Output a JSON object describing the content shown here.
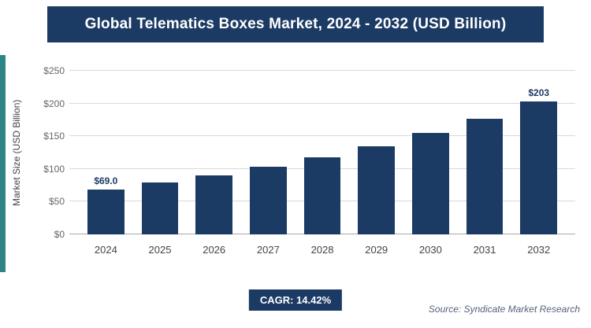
{
  "header": {
    "title": "Global Telematics Boxes Market, 2024 - 2032 (USD Billion)"
  },
  "chart_data": {
    "type": "bar",
    "title": "Global Telematics Boxes Market, 2024 - 2032 (USD Billion)",
    "categories": [
      "2024",
      "2025",
      "2026",
      "2027",
      "2028",
      "2029",
      "2030",
      "2031",
      "2032"
    ],
    "values": [
      69,
      79,
      90,
      103,
      118,
      135,
      155,
      177,
      203
    ],
    "bar_labels": [
      "$69.0",
      "",
      "",
      "",
      "",
      "",
      "",
      "",
      "$203"
    ],
    "xlabel": "",
    "ylabel": "Market Size (USD Billion)",
    "ylim": [
      0,
      250
    ],
    "yticks": [
      "$0",
      "$50",
      "$100",
      "$150",
      "$200",
      "$250"
    ],
    "grid": "horizontal",
    "legend": "none",
    "bar_color": "#1b3a64",
    "accent_color": "#2e8585"
  },
  "footer": {
    "cagr_label": "CAGR: 14.42%",
    "source": "Source: Syndicate Market Research"
  }
}
